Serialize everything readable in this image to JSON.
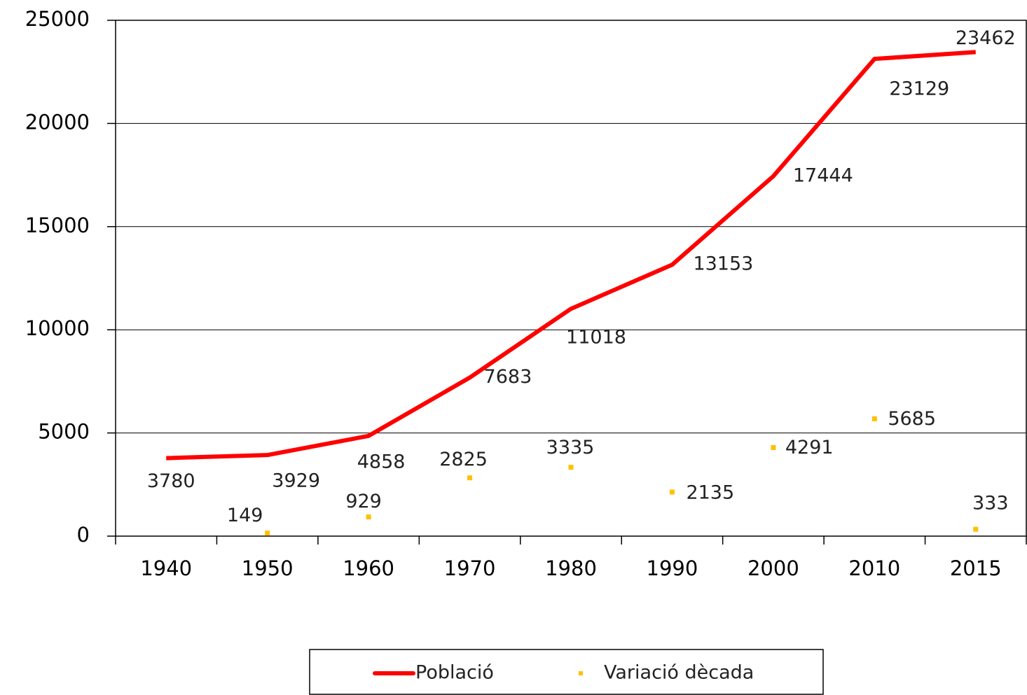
{
  "chart_data": {
    "type": "line",
    "categories": [
      "1940",
      "1950",
      "1960",
      "1970",
      "1980",
      "1990",
      "2000",
      "2010",
      "2015"
    ],
    "series": [
      {
        "name": "Població",
        "color": "#ff0000",
        "values": [
          3780,
          3929,
          4858,
          7683,
          11018,
          13153,
          17444,
          23129,
          23462
        ]
      },
      {
        "name": "Variació dècada",
        "color": "#ffc000",
        "values": [
          null,
          149,
          929,
          2825,
          3335,
          2135,
          4291,
          5685,
          333
        ]
      }
    ],
    "ylim": [
      0,
      25000
    ],
    "yticks": [
      0,
      5000,
      10000,
      15000,
      20000,
      25000
    ],
    "grid": true,
    "legend": "bottom"
  }
}
